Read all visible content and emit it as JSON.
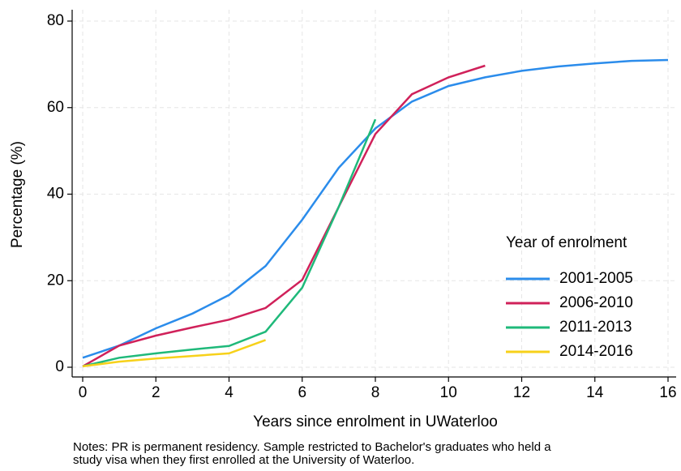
{
  "chart_data": {
    "type": "line",
    "x_label": "Years since enrolment in UWaterloo",
    "y_label": "Percentage (%)",
    "legend_title": "Year of enrolment",
    "notes": [
      "Notes: PR is permanent residency. Sample restricted to Bachelor's graduates who held a",
      "study visa when they first enrolled at the University of Waterloo."
    ],
    "xlim": [
      0,
      16
    ],
    "xticks": [
      0,
      2,
      4,
      6,
      8,
      10,
      12,
      14,
      16
    ],
    "ylim": [
      0,
      80
    ],
    "yticks": [
      0,
      20,
      40,
      60,
      80
    ],
    "grid": true,
    "legend_position": "lower right",
    "series": [
      {
        "name": "2001-2005",
        "color": "#2b8ceb",
        "x": [
          0,
          1,
          2,
          3,
          4,
          5,
          6,
          7,
          8,
          9,
          10,
          11,
          12,
          13,
          14,
          15,
          16
        ],
        "values": [
          2.2,
          5.0,
          9.0,
          12.4,
          16.7,
          23.4,
          34.1,
          46.1,
          55.2,
          61.4,
          65.0,
          67.0,
          68.5,
          69.5,
          70.2,
          70.8,
          71.0
        ]
      },
      {
        "name": "2006-2010",
        "color": "#d0215a",
        "x": [
          0,
          1,
          2,
          3,
          4,
          5,
          6,
          7,
          8,
          9,
          10,
          11
        ],
        "values": [
          0.2,
          5.0,
          7.3,
          9.2,
          11.0,
          13.7,
          20.2,
          37.1,
          53.9,
          63.1,
          67.0,
          69.7
        ]
      },
      {
        "name": "2011-2013",
        "color": "#1fb97a",
        "x": [
          0,
          1,
          2,
          3,
          4,
          5,
          6,
          7,
          8
        ],
        "values": [
          0.2,
          2.2,
          3.2,
          4.1,
          4.9,
          8.2,
          18.4,
          37.1,
          57.3
        ]
      },
      {
        "name": "2014-2016",
        "color": "#f7d11a",
        "x": [
          0,
          1,
          2,
          3,
          4,
          5
        ],
        "values": [
          0.2,
          1.3,
          2.0,
          2.6,
          3.2,
          6.3
        ]
      }
    ]
  }
}
